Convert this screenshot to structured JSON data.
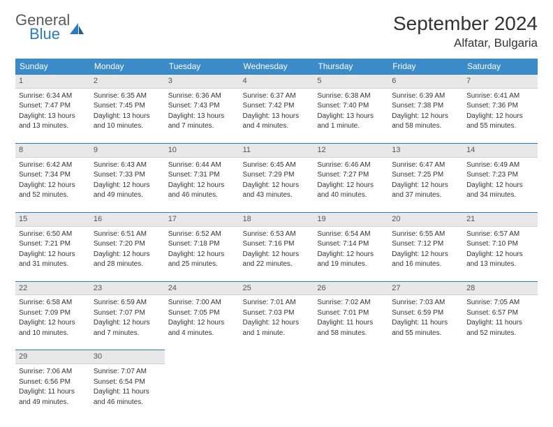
{
  "logo": {
    "word1": "General",
    "word2": "Blue"
  },
  "title": "September 2024",
  "location": "Alfatar, Bulgaria",
  "weekday_headers": [
    "Sunday",
    "Monday",
    "Tuesday",
    "Wednesday",
    "Thursday",
    "Friday",
    "Saturday"
  ],
  "colors": {
    "header_bg": "#3b8bc9",
    "accent_line": "#2a7abf",
    "daynum_bg": "#e8e8e8",
    "text": "#333333",
    "logo_gray": "#5a5a5a",
    "logo_blue": "#2a7abf"
  },
  "weeks": [
    [
      {
        "n": "1",
        "sr": "Sunrise: 6:34 AM",
        "ss": "Sunset: 7:47 PM",
        "d1": "Daylight: 13 hours",
        "d2": "and 13 minutes."
      },
      {
        "n": "2",
        "sr": "Sunrise: 6:35 AM",
        "ss": "Sunset: 7:45 PM",
        "d1": "Daylight: 13 hours",
        "d2": "and 10 minutes."
      },
      {
        "n": "3",
        "sr": "Sunrise: 6:36 AM",
        "ss": "Sunset: 7:43 PM",
        "d1": "Daylight: 13 hours",
        "d2": "and 7 minutes."
      },
      {
        "n": "4",
        "sr": "Sunrise: 6:37 AM",
        "ss": "Sunset: 7:42 PM",
        "d1": "Daylight: 13 hours",
        "d2": "and 4 minutes."
      },
      {
        "n": "5",
        "sr": "Sunrise: 6:38 AM",
        "ss": "Sunset: 7:40 PM",
        "d1": "Daylight: 13 hours",
        "d2": "and 1 minute."
      },
      {
        "n": "6",
        "sr": "Sunrise: 6:39 AM",
        "ss": "Sunset: 7:38 PM",
        "d1": "Daylight: 12 hours",
        "d2": "and 58 minutes."
      },
      {
        "n": "7",
        "sr": "Sunrise: 6:41 AM",
        "ss": "Sunset: 7:36 PM",
        "d1": "Daylight: 12 hours",
        "d2": "and 55 minutes."
      }
    ],
    [
      {
        "n": "8",
        "sr": "Sunrise: 6:42 AM",
        "ss": "Sunset: 7:34 PM",
        "d1": "Daylight: 12 hours",
        "d2": "and 52 minutes."
      },
      {
        "n": "9",
        "sr": "Sunrise: 6:43 AM",
        "ss": "Sunset: 7:33 PM",
        "d1": "Daylight: 12 hours",
        "d2": "and 49 minutes."
      },
      {
        "n": "10",
        "sr": "Sunrise: 6:44 AM",
        "ss": "Sunset: 7:31 PM",
        "d1": "Daylight: 12 hours",
        "d2": "and 46 minutes."
      },
      {
        "n": "11",
        "sr": "Sunrise: 6:45 AM",
        "ss": "Sunset: 7:29 PM",
        "d1": "Daylight: 12 hours",
        "d2": "and 43 minutes."
      },
      {
        "n": "12",
        "sr": "Sunrise: 6:46 AM",
        "ss": "Sunset: 7:27 PM",
        "d1": "Daylight: 12 hours",
        "d2": "and 40 minutes."
      },
      {
        "n": "13",
        "sr": "Sunrise: 6:47 AM",
        "ss": "Sunset: 7:25 PM",
        "d1": "Daylight: 12 hours",
        "d2": "and 37 minutes."
      },
      {
        "n": "14",
        "sr": "Sunrise: 6:49 AM",
        "ss": "Sunset: 7:23 PM",
        "d1": "Daylight: 12 hours",
        "d2": "and 34 minutes."
      }
    ],
    [
      {
        "n": "15",
        "sr": "Sunrise: 6:50 AM",
        "ss": "Sunset: 7:21 PM",
        "d1": "Daylight: 12 hours",
        "d2": "and 31 minutes."
      },
      {
        "n": "16",
        "sr": "Sunrise: 6:51 AM",
        "ss": "Sunset: 7:20 PM",
        "d1": "Daylight: 12 hours",
        "d2": "and 28 minutes."
      },
      {
        "n": "17",
        "sr": "Sunrise: 6:52 AM",
        "ss": "Sunset: 7:18 PM",
        "d1": "Daylight: 12 hours",
        "d2": "and 25 minutes."
      },
      {
        "n": "18",
        "sr": "Sunrise: 6:53 AM",
        "ss": "Sunset: 7:16 PM",
        "d1": "Daylight: 12 hours",
        "d2": "and 22 minutes."
      },
      {
        "n": "19",
        "sr": "Sunrise: 6:54 AM",
        "ss": "Sunset: 7:14 PM",
        "d1": "Daylight: 12 hours",
        "d2": "and 19 minutes."
      },
      {
        "n": "20",
        "sr": "Sunrise: 6:55 AM",
        "ss": "Sunset: 7:12 PM",
        "d1": "Daylight: 12 hours",
        "d2": "and 16 minutes."
      },
      {
        "n": "21",
        "sr": "Sunrise: 6:57 AM",
        "ss": "Sunset: 7:10 PM",
        "d1": "Daylight: 12 hours",
        "d2": "and 13 minutes."
      }
    ],
    [
      {
        "n": "22",
        "sr": "Sunrise: 6:58 AM",
        "ss": "Sunset: 7:09 PM",
        "d1": "Daylight: 12 hours",
        "d2": "and 10 minutes."
      },
      {
        "n": "23",
        "sr": "Sunrise: 6:59 AM",
        "ss": "Sunset: 7:07 PM",
        "d1": "Daylight: 12 hours",
        "d2": "and 7 minutes."
      },
      {
        "n": "24",
        "sr": "Sunrise: 7:00 AM",
        "ss": "Sunset: 7:05 PM",
        "d1": "Daylight: 12 hours",
        "d2": "and 4 minutes."
      },
      {
        "n": "25",
        "sr": "Sunrise: 7:01 AM",
        "ss": "Sunset: 7:03 PM",
        "d1": "Daylight: 12 hours",
        "d2": "and 1 minute."
      },
      {
        "n": "26",
        "sr": "Sunrise: 7:02 AM",
        "ss": "Sunset: 7:01 PM",
        "d1": "Daylight: 11 hours",
        "d2": "and 58 minutes."
      },
      {
        "n": "27",
        "sr": "Sunrise: 7:03 AM",
        "ss": "Sunset: 6:59 PM",
        "d1": "Daylight: 11 hours",
        "d2": "and 55 minutes."
      },
      {
        "n": "28",
        "sr": "Sunrise: 7:05 AM",
        "ss": "Sunset: 6:57 PM",
        "d1": "Daylight: 11 hours",
        "d2": "and 52 minutes."
      }
    ],
    [
      {
        "n": "29",
        "sr": "Sunrise: 7:06 AM",
        "ss": "Sunset: 6:56 PM",
        "d1": "Daylight: 11 hours",
        "d2": "and 49 minutes."
      },
      {
        "n": "30",
        "sr": "Sunrise: 7:07 AM",
        "ss": "Sunset: 6:54 PM",
        "d1": "Daylight: 11 hours",
        "d2": "and 46 minutes."
      },
      null,
      null,
      null,
      null,
      null
    ]
  ]
}
